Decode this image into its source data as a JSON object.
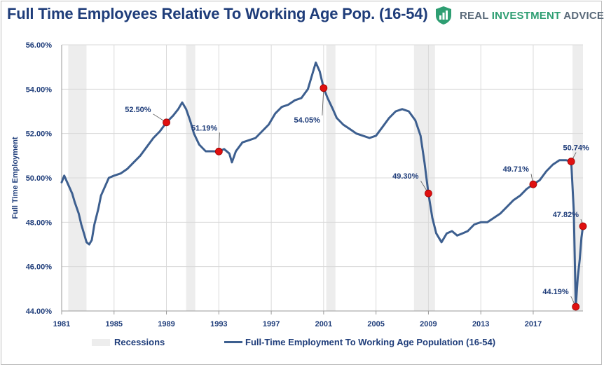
{
  "title": "Full Time Employees Relative To Working Age Pop. (16-54)",
  "brand": {
    "name_part1": "REAL ",
    "name_part2": "INVESTMENT",
    "name_part3": " ADVICE",
    "logo_icon": "bar-chart-shield-icon",
    "accent_color": "#2e9e72"
  },
  "chart_data": {
    "type": "line",
    "ylabel": "Full Time Employment",
    "ylim": [
      44,
      56
    ],
    "xlim": [
      1981,
      2020.8
    ],
    "yticks": [
      "44.00%",
      "46.00%",
      "48.00%",
      "50.00%",
      "52.00%",
      "54.00%",
      "56.00%"
    ],
    "xticks": [
      "1981",
      "1985",
      "1989",
      "1993",
      "1997",
      "2001",
      "2005",
      "2009",
      "2013",
      "2017"
    ],
    "grid": true,
    "legend_position": "bottom",
    "series": [
      {
        "name": "Full-Time Employment To Working Age Population (16-54)",
        "color": "#3d5f8f",
        "points": [
          [
            1981.0,
            49.8
          ],
          [
            1981.2,
            50.1
          ],
          [
            1981.5,
            49.7
          ],
          [
            1981.8,
            49.3
          ],
          [
            1982.0,
            48.9
          ],
          [
            1982.3,
            48.4
          ],
          [
            1982.5,
            47.9
          ],
          [
            1982.7,
            47.5
          ],
          [
            1982.9,
            47.1
          ],
          [
            1983.1,
            47.0
          ],
          [
            1983.3,
            47.2
          ],
          [
            1983.5,
            47.9
          ],
          [
            1983.8,
            48.6
          ],
          [
            1984.0,
            49.2
          ],
          [
            1984.3,
            49.6
          ],
          [
            1984.6,
            50.0
          ],
          [
            1985.0,
            50.1
          ],
          [
            1985.5,
            50.2
          ],
          [
            1986.0,
            50.4
          ],
          [
            1986.5,
            50.7
          ],
          [
            1987.0,
            51.0
          ],
          [
            1987.5,
            51.4
          ],
          [
            1988.0,
            51.8
          ],
          [
            1988.5,
            52.1
          ],
          [
            1989.0,
            52.5
          ],
          [
            1989.5,
            52.8
          ],
          [
            1989.9,
            53.1
          ],
          [
            1990.2,
            53.4
          ],
          [
            1990.5,
            53.1
          ],
          [
            1990.8,
            52.6
          ],
          [
            1991.1,
            52.0
          ],
          [
            1991.5,
            51.5
          ],
          [
            1992.0,
            51.2
          ],
          [
            1992.5,
            51.2
          ],
          [
            1993.0,
            51.19
          ],
          [
            1993.4,
            51.3
          ],
          [
            1993.8,
            51.1
          ],
          [
            1994.0,
            50.7
          ],
          [
            1994.3,
            51.2
          ],
          [
            1994.8,
            51.6
          ],
          [
            1995.3,
            51.7
          ],
          [
            1995.8,
            51.8
          ],
          [
            1996.3,
            52.1
          ],
          [
            1996.8,
            52.4
          ],
          [
            1997.3,
            52.9
          ],
          [
            1997.8,
            53.2
          ],
          [
            1998.3,
            53.3
          ],
          [
            1998.8,
            53.5
          ],
          [
            1999.3,
            53.6
          ],
          [
            1999.8,
            54.0
          ],
          [
            2000.2,
            54.8
          ],
          [
            2000.4,
            55.2
          ],
          [
            2000.7,
            54.8
          ],
          [
            2001.0,
            54.05
          ],
          [
            2001.3,
            53.6
          ],
          [
            2001.7,
            53.1
          ],
          [
            2002.0,
            52.7
          ],
          [
            2002.5,
            52.4
          ],
          [
            2003.0,
            52.2
          ],
          [
            2003.5,
            52.0
          ],
          [
            2004.0,
            51.9
          ],
          [
            2004.5,
            51.8
          ],
          [
            2005.0,
            51.9
          ],
          [
            2005.5,
            52.3
          ],
          [
            2006.0,
            52.7
          ],
          [
            2006.5,
            53.0
          ],
          [
            2007.0,
            53.1
          ],
          [
            2007.5,
            53.0
          ],
          [
            2008.0,
            52.6
          ],
          [
            2008.4,
            51.9
          ],
          [
            2008.7,
            50.7
          ],
          [
            2009.0,
            49.3
          ],
          [
            2009.3,
            48.2
          ],
          [
            2009.6,
            47.5
          ],
          [
            2010.0,
            47.1
          ],
          [
            2010.4,
            47.5
          ],
          [
            2010.8,
            47.6
          ],
          [
            2011.2,
            47.4
          ],
          [
            2011.6,
            47.5
          ],
          [
            2012.0,
            47.6
          ],
          [
            2012.5,
            47.9
          ],
          [
            2013.0,
            48.0
          ],
          [
            2013.5,
            48.0
          ],
          [
            2014.0,
            48.2
          ],
          [
            2014.5,
            48.4
          ],
          [
            2015.0,
            48.7
          ],
          [
            2015.5,
            49.0
          ],
          [
            2016.0,
            49.2
          ],
          [
            2016.5,
            49.5
          ],
          [
            2017.0,
            49.71
          ],
          [
            2017.5,
            49.9
          ],
          [
            2018.0,
            50.3
          ],
          [
            2018.5,
            50.6
          ],
          [
            2019.0,
            50.8
          ],
          [
            2019.5,
            50.8
          ],
          [
            2019.9,
            50.74
          ],
          [
            2020.1,
            48.5
          ],
          [
            2020.25,
            44.19
          ],
          [
            2020.4,
            45.5
          ],
          [
            2020.55,
            46.3
          ],
          [
            2020.68,
            47.3
          ],
          [
            2020.8,
            47.82
          ]
        ]
      }
    ],
    "recessions": [
      [
        1981.5,
        1982.9
      ],
      [
        1990.5,
        1991.2
      ],
      [
        2001.2,
        2001.9
      ],
      [
        2007.9,
        2009.5
      ],
      [
        2020.0,
        2020.8
      ]
    ],
    "annotations": [
      {
        "label": "52.50%",
        "x": 1989.0,
        "y": 52.5
      },
      {
        "label": "51.19%",
        "x": 1993.0,
        "y": 51.19
      },
      {
        "label": "54.05%",
        "x": 2001.0,
        "y": 54.05
      },
      {
        "label": "49.30%",
        "x": 2009.0,
        "y": 49.3
      },
      {
        "label": "49.71%",
        "x": 2017.0,
        "y": 49.71
      },
      {
        "label": "50.74%",
        "x": 2019.9,
        "y": 50.74
      },
      {
        "label": "47.82%",
        "x": 2020.8,
        "y": 47.82
      },
      {
        "label": "44.19%",
        "x": 2020.25,
        "y": 44.19
      }
    ],
    "marker_color": "#e01010",
    "recession_color": "#ededed"
  },
  "legend": {
    "recessions_label": "Recessions",
    "series_label": "Full-Time Employment To Working Age Population (16-54)"
  }
}
